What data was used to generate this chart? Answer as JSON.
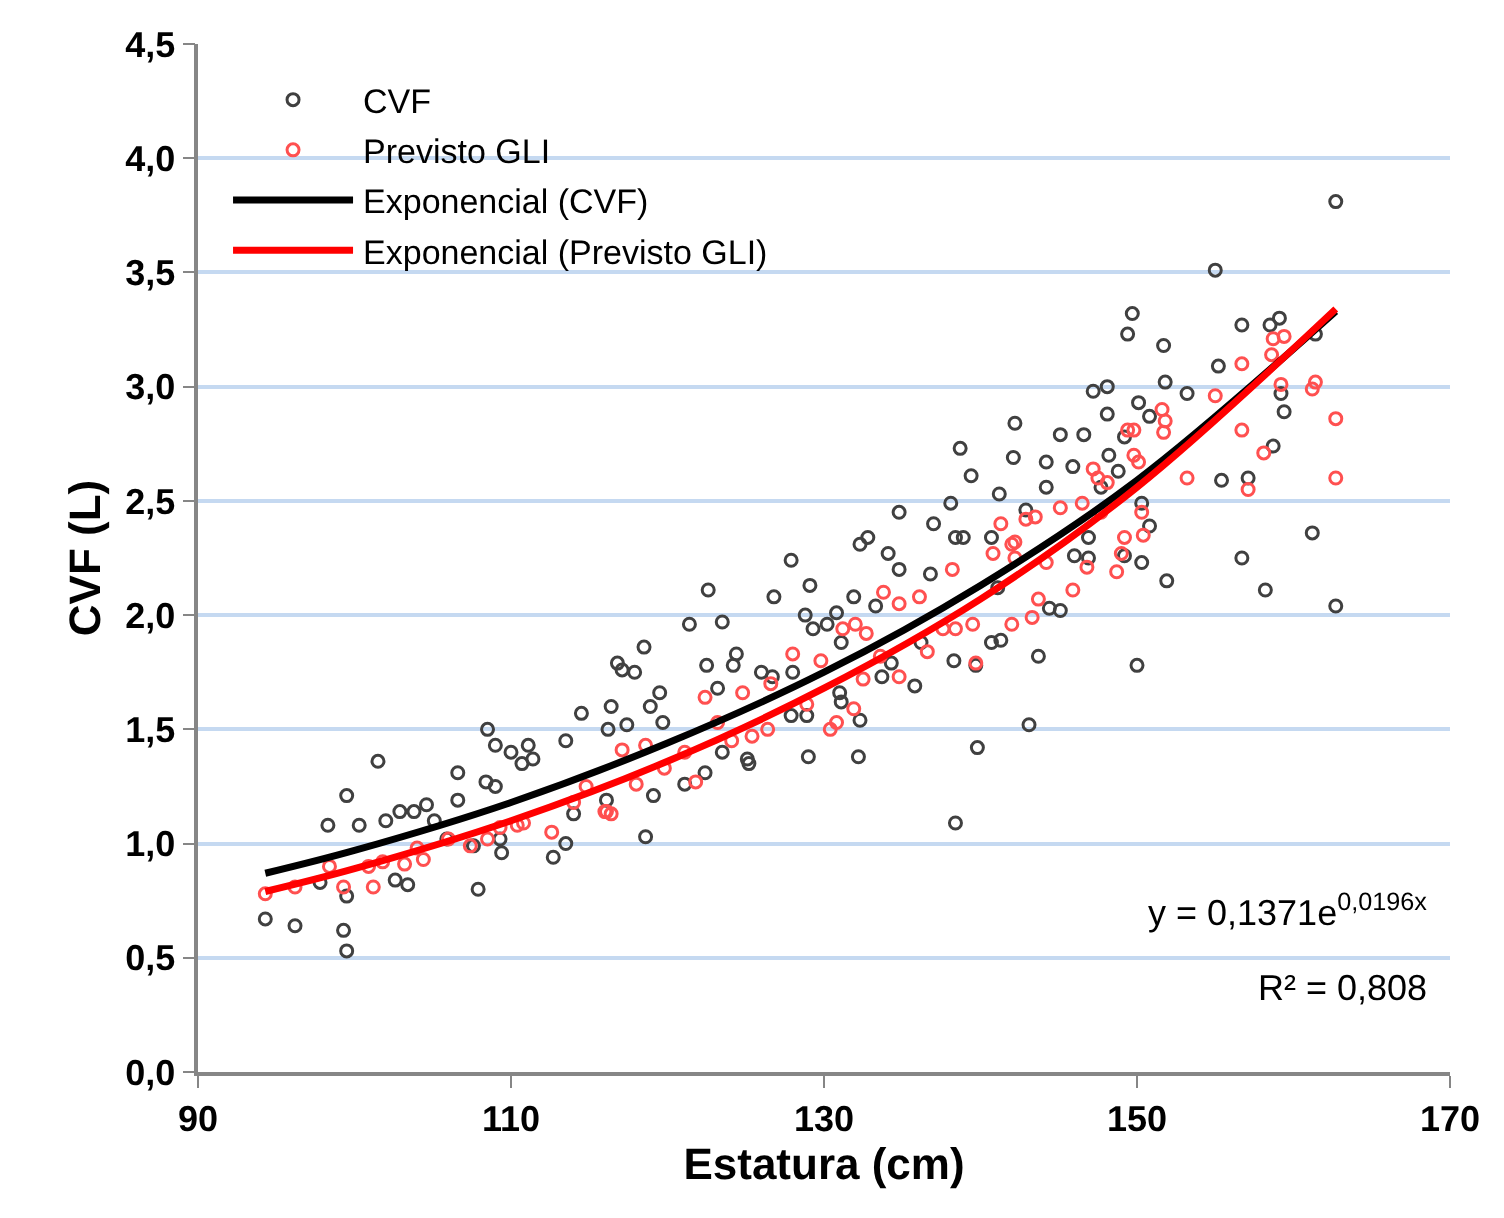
{
  "chart_data": {
    "type": "scatter",
    "xlabel": "Estatura (cm)",
    "ylabel": "CVF (L)",
    "xlim": [
      90,
      170
    ],
    "xticks": [
      90,
      110,
      130,
      150,
      170
    ],
    "ylim": [
      0,
      4.5
    ],
    "yticks": [
      {
        "value": 0,
        "label": "0,0"
      },
      {
        "value": 0.5,
        "label": "0,5"
      },
      {
        "value": 1,
        "label": "1,0"
      },
      {
        "value": 1.5,
        "label": "1,5"
      },
      {
        "value": 2,
        "label": "2,0"
      },
      {
        "value": 2.5,
        "label": "2,5"
      },
      {
        "value": 3,
        "label": "3,0"
      },
      {
        "value": 3.5,
        "label": "3,5"
      },
      {
        "value": 4,
        "label": "4,0"
      },
      {
        "value": 4.5,
        "label": "4,5"
      }
    ],
    "grid": "y",
    "legend": "top left",
    "annotations": [
      "y = 0,1371e$^{0,0196x}$",
      "R² = 0,808"
    ],
    "series": [
      {
        "name": "CVF",
        "marker": "circle",
        "color": "#404040",
        "x": [
          94.3,
          96.2,
          99.3,
          99.5,
          99.5,
          98.3,
          99.5,
          100.3,
          101.5,
          102.0,
          97.8,
          102.6,
          103.4,
          102.9,
          103.8,
          104.6,
          105.1,
          106.6,
          106.6,
          107.9,
          108.5,
          108.4,
          109.0,
          109.0,
          110.0,
          111.1,
          110.7,
          111.4,
          109.3,
          109.4,
          107.6,
          105.9,
          112.7,
          113.5,
          113.5,
          114.0,
          114.5,
          116.1,
          116.2,
          116.4,
          116.8,
          117.1,
          117.9,
          118.5,
          117.4,
          118.6,
          119.1,
          118.9,
          119.5,
          119.7,
          121.1,
          121.4,
          122.4,
          122.5,
          122.6,
          123.2,
          123.5,
          123.5,
          124.2,
          124.4,
          125.1,
          125.2,
          126.0,
          126.7,
          126.8,
          127.9,
          127.9,
          128.0,
          128.9,
          128.8,
          129.0,
          129.1,
          129.3,
          130.2,
          130.8,
          131.1,
          131.0,
          131.1,
          131.9,
          132.2,
          132.3,
          132.3,
          132.8,
          133.3,
          133.7,
          134.1,
          134.3,
          134.8,
          134.8,
          135.8,
          136.2,
          137.0,
          136.8,
          138.3,
          138.4,
          138.1,
          138.4,
          138.9,
          138.7,
          139.4,
          139.7,
          139.8,
          140.7,
          140.7,
          141.2,
          141.3,
          141.1,
          142.1,
          142.2,
          142.9,
          143.1,
          143.7,
          144.2,
          144.2,
          144.4,
          145.1,
          145.1,
          145.9,
          146.0,
          146.6,
          146.9,
          146.9,
          147.2,
          148.1,
          148.1,
          147.7,
          148.2,
          148.8,
          149.2,
          149.2,
          149.4,
          149.7,
          150.0,
          150.1,
          150.3,
          150.3,
          150.8,
          150.8,
          151.7,
          151.8,
          151.9,
          153.2,
          155.0,
          155.2,
          155.4,
          156.7,
          156.7,
          157.1,
          158.2,
          158.5,
          159.1,
          158.7,
          159.2,
          159.4,
          161.2,
          161.4,
          162.7,
          162.7
        ],
        "values": [
          0.67,
          0.64,
          0.62,
          0.53,
          0.77,
          1.08,
          1.21,
          1.08,
          1.36,
          1.1,
          0.83,
          0.84,
          0.82,
          1.14,
          1.14,
          1.17,
          1.1,
          1.31,
          1.19,
          0.8,
          1.5,
          1.27,
          1.25,
          1.43,
          1.4,
          1.43,
          1.35,
          1.37,
          1.02,
          0.96,
          0.99,
          1.02,
          0.94,
          1.0,
          1.45,
          1.13,
          1.57,
          1.19,
          1.5,
          1.6,
          1.79,
          1.76,
          1.75,
          1.86,
          1.52,
          1.03,
          1.21,
          1.6,
          1.66,
          1.53,
          1.26,
          1.96,
          1.31,
          1.78,
          2.11,
          1.68,
          1.4,
          1.97,
          1.78,
          1.83,
          1.37,
          1.35,
          1.75,
          1.73,
          2.08,
          1.56,
          2.24,
          1.75,
          1.56,
          2.0,
          1.38,
          2.13,
          1.94,
          1.96,
          2.01,
          1.88,
          1.66,
          1.62,
          2.08,
          1.38,
          1.54,
          2.31,
          2.34,
          2.04,
          1.73,
          2.27,
          1.79,
          2.2,
          2.45,
          1.69,
          1.88,
          2.4,
          2.18,
          1.8,
          1.09,
          2.49,
          2.34,
          2.34,
          2.73,
          2.61,
          1.78,
          1.42,
          1.88,
          2.34,
          2.53,
          1.89,
          2.12,
          2.69,
          2.84,
          2.46,
          1.52,
          1.82,
          2.67,
          2.56,
          2.03,
          2.02,
          2.79,
          2.65,
          2.26,
          2.79,
          2.25,
          2.34,
          2.98,
          3.0,
          2.88,
          2.56,
          2.7,
          2.63,
          2.26,
          2.78,
          3.23,
          3.32,
          1.78,
          2.93,
          2.49,
          2.23,
          2.39,
          2.87,
          3.18,
          3.02,
          2.15,
          2.97,
          3.51,
          3.09,
          2.59,
          3.27,
          2.25,
          2.6,
          2.11,
          3.27,
          3.3,
          2.74,
          2.97,
          2.89,
          2.36,
          3.23,
          3.81,
          2.04
        ]
      },
      {
        "name": "Previsto GLI",
        "marker": "circle",
        "color": "#ff5050",
        "x": [
          94.3,
          96.2,
          99.3,
          101.2,
          100.9,
          101.8,
          103.2,
          104.4,
          104.0,
          106.0,
          107.4,
          108.5,
          109.3,
          110.4,
          110.8,
          112.6,
          114.0,
          116.1,
          116.4,
          114.8,
          98.4,
          116.0,
          117.1,
          118.0,
          118.6,
          119.8,
          121.1,
          121.8,
          122.4,
          123.2,
          124.1,
          124.8,
          125.4,
          126.4,
          126.6,
          128.0,
          128.9,
          129.8,
          130.4,
          130.8,
          131.2,
          131.9,
          132.0,
          132.5,
          132.7,
          133.8,
          133.6,
          134.8,
          134.8,
          136.1,
          136.6,
          137.6,
          138.2,
          138.4,
          139.5,
          139.7,
          140.8,
          141.3,
          142.0,
          142.0,
          142.9,
          142.2,
          142.2,
          143.3,
          143.5,
          143.7,
          144.2,
          145.1,
          145.9,
          146.5,
          146.8,
          147.2,
          147.5,
          147.7,
          148.1,
          148.7,
          149.0,
          149.2,
          149.4,
          149.8,
          149.8,
          150.1,
          150.3,
          150.4,
          151.6,
          151.8,
          151.7,
          153.2,
          155.0,
          156.7,
          156.7,
          157.1,
          158.1,
          158.6,
          158.7,
          159.4,
          159.2,
          161.2,
          161.4,
          162.7,
          162.7
        ],
        "values": [
          0.78,
          0.81,
          0.81,
          0.81,
          0.9,
          0.92,
          0.91,
          0.93,
          0.98,
          1.02,
          0.99,
          1.02,
          1.07,
          1.08,
          1.09,
          1.05,
          1.18,
          1.14,
          1.13,
          1.25,
          0.9,
          1.14,
          1.41,
          1.26,
          1.43,
          1.33,
          1.4,
          1.27,
          1.64,
          1.53,
          1.45,
          1.66,
          1.47,
          1.5,
          1.7,
          1.83,
          1.61,
          1.8,
          1.5,
          1.53,
          1.94,
          1.59,
          1.96,
          1.72,
          1.92,
          2.1,
          1.82,
          2.05,
          1.73,
          2.08,
          1.84,
          1.94,
          2.2,
          1.94,
          1.96,
          1.79,
          2.27,
          2.4,
          1.96,
          2.31,
          2.42,
          2.32,
          2.25,
          1.99,
          2.43,
          2.07,
          2.23,
          2.47,
          2.11,
          2.49,
          2.21,
          2.64,
          2.6,
          2.45,
          2.58,
          2.19,
          2.27,
          2.34,
          2.81,
          2.81,
          2.7,
          2.67,
          2.45,
          2.35,
          2.9,
          2.85,
          2.8,
          2.6,
          2.96,
          3.1,
          2.81,
          2.55,
          2.71,
          3.14,
          3.21,
          3.22,
          3.01,
          2.99,
          3.02,
          2.86,
          2.6
        ]
      },
      {
        "name": "Exponencial (CVF)",
        "type": "line",
        "marker": "none",
        "color": "#000000",
        "x": [
          94.3,
          100,
          110,
          120,
          130,
          140,
          150,
          162.7
        ],
        "values": [
          0.87,
          0.97,
          1.18,
          1.44,
          1.75,
          2.13,
          2.59,
          3.33
        ]
      },
      {
        "name": "Exponencial (Previsto GLI)",
        "type": "line",
        "marker": "none",
        "color": "#ff0000",
        "x": [
          94.3,
          100,
          110,
          120,
          130,
          140,
          150,
          162.7
        ],
        "values": [
          0.79,
          0.89,
          1.1,
          1.36,
          1.68,
          2.07,
          2.56,
          3.34
        ]
      }
    ]
  }
}
